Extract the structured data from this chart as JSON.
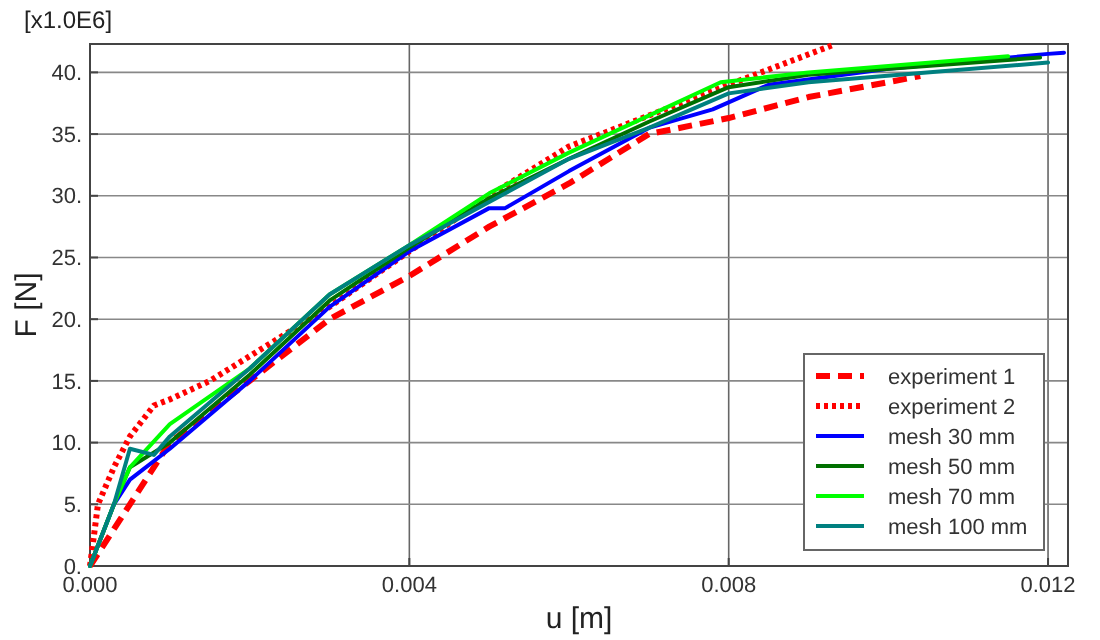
{
  "chart_data": {
    "type": "line",
    "xlabel": "u [m]",
    "ylabel": "F [N]",
    "annotations": [
      "[x1.0E6]"
    ],
    "xlim": [
      0,
      0.01225
    ],
    "xticks": [
      {
        "value": 0,
        "label": "0.000"
      },
      {
        "value": 0.004,
        "label": "0.004"
      },
      {
        "value": 0.008,
        "label": "0.008"
      },
      {
        "value": 0.012,
        "label": "0.012"
      }
    ],
    "ylim": [
      0,
      42.3
    ],
    "yticks": [
      {
        "value": 0,
        "label": "0."
      },
      {
        "value": 5,
        "label": "5."
      },
      {
        "value": 10,
        "label": "10."
      },
      {
        "value": 15,
        "label": "15."
      },
      {
        "value": 20,
        "label": "20."
      },
      {
        "value": 25,
        "label": "25."
      },
      {
        "value": 30,
        "label": "30."
      },
      {
        "value": 35,
        "label": "35."
      },
      {
        "value": 40,
        "label": "40."
      }
    ],
    "grid": true,
    "legend": "bottom right",
    "series": [
      {
        "name": "experiment 1",
        "color": "#ff0000",
        "line_style": "dashed",
        "x": [
          0,
          0.0005,
          0.001,
          0.002,
          0.003,
          0.004,
          0.005,
          0.006,
          0.007,
          0.008,
          0.009,
          0.0104
        ],
        "values": [
          0,
          5,
          10,
          15,
          20,
          23.5,
          27.5,
          31,
          35,
          36.3,
          38,
          39.7
        ]
      },
      {
        "name": "experiment 2",
        "color": "#ff0000",
        "line_style": "dotted",
        "x": [
          0,
          0.0001,
          0.0003,
          0.0005,
          0.0008,
          0.001,
          0.0015,
          0.002,
          0.003,
          0.004,
          0.005,
          0.006,
          0.007,
          0.008,
          0.0093
        ],
        "values": [
          0,
          5,
          8,
          10.5,
          13,
          13.5,
          15,
          17,
          21,
          25.5,
          30,
          34,
          36.5,
          39,
          42.2
        ]
      },
      {
        "name": "mesh 30 mm",
        "color": "#0000ff",
        "line_style": "solid",
        "x": [
          0,
          0.0003,
          0.0005,
          0.001,
          0.002,
          0.003,
          0.004,
          0.005,
          0.0052,
          0.006,
          0.007,
          0.0078,
          0.0085,
          0.01,
          0.012,
          0.0122
        ],
        "values": [
          0,
          5,
          7,
          9.5,
          15,
          21,
          25.5,
          29,
          29,
          32,
          35.5,
          37,
          39,
          40.3,
          41.5,
          41.6
        ]
      },
      {
        "name": "mesh 50 mm",
        "color": "#007000",
        "line_style": "solid",
        "x": [
          0,
          0.0003,
          0.0005,
          0.001,
          0.002,
          0.003,
          0.004,
          0.005,
          0.006,
          0.007,
          0.008,
          0.009,
          0.0119
        ],
        "values": [
          0,
          5,
          8,
          10,
          15.5,
          21.5,
          25.8,
          29.8,
          33,
          36,
          38.8,
          39.8,
          41.2
        ]
      },
      {
        "name": "mesh 70 mm",
        "color": "#00ff00",
        "line_style": "solid",
        "x": [
          0,
          0.0003,
          0.0005,
          0.001,
          0.002,
          0.003,
          0.004,
          0.005,
          0.006,
          0.007,
          0.0079,
          0.009,
          0.0115
        ],
        "values": [
          0,
          5,
          8,
          11.5,
          16,
          22,
          26,
          30.2,
          33.5,
          36.5,
          39.2,
          40,
          41.3
        ]
      },
      {
        "name": "mesh 100 mm",
        "color": "#008080",
        "line_style": "solid",
        "x": [
          0,
          0.0003,
          0.0005,
          0.0008,
          0.001,
          0.002,
          0.003,
          0.004,
          0.005,
          0.006,
          0.007,
          0.008,
          0.009,
          0.012
        ],
        "values": [
          0,
          5,
          9.5,
          9,
          10.5,
          16,
          22,
          26,
          29.5,
          33,
          35.5,
          38.3,
          39.2,
          40.8
        ]
      }
    ]
  }
}
